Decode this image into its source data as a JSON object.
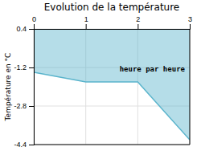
{
  "chart_data": {
    "type": "area",
    "title": "Evolution de la température",
    "y_label": "Température en °C",
    "x": [
      0,
      1,
      2,
      3
    ],
    "series": [
      {
        "values": [
          -1.4,
          -1.8,
          -1.8,
          -4.2
        ],
        "color": "#5ab4cc"
      }
    ],
    "fill_to": 0.4,
    "xlim": [
      0,
      3
    ],
    "ylim": [
      -4.4,
      0.4
    ],
    "xticks": [
      0,
      1,
      2,
      3
    ],
    "yticks": [
      0.4,
      -1.2,
      -2.8,
      -4.4
    ],
    "grid": true,
    "annotations": [
      {
        "text": "heure par heure",
        "x": 1.65,
        "y": -1.15
      }
    ]
  }
}
